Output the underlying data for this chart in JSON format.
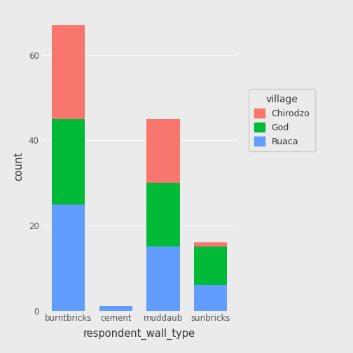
{
  "categories": [
    "burntbricks",
    "cement",
    "muddaub",
    "sunbricks"
  ],
  "villages": [
    "Ruaca",
    "God",
    "Chirodzo"
  ],
  "colors": {
    "Chirodzo": "#F8766D",
    "God": "#00BA38",
    "Ruaca": "#619CFF"
  },
  "values": {
    "Ruaca": [
      25,
      1,
      15,
      6
    ],
    "God": [
      20,
      0,
      15,
      9
    ],
    "Chirodzo": [
      22,
      0,
      15,
      1
    ]
  },
  "xlabel": "respondent_wall_type",
  "ylabel": "count",
  "legend_title": "village",
  "ylim": [
    0,
    68
  ],
  "yticks": [
    0,
    20,
    40,
    60
  ],
  "background_color": "#EBEBEB",
  "grid_color": "#FFFFFF",
  "bar_width": 0.7,
  "tick_label_color": "#555555",
  "axis_label_color": "#333333"
}
